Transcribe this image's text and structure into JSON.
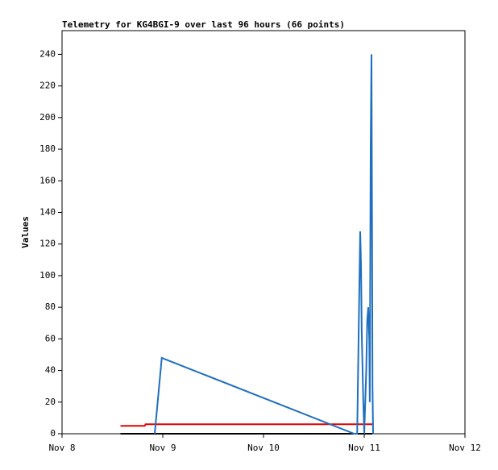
{
  "chart_data": {
    "type": "line",
    "title": "Telemetry for KG4BGI-9 over last 96 hours (66 points)",
    "ylabel": "Values",
    "xlim": [
      8,
      12
    ],
    "xticks": [
      {
        "value": 8,
        "label": "Nov 8"
      },
      {
        "value": 9,
        "label": "Nov 9"
      },
      {
        "value": 10,
        "label": "Nov 10"
      },
      {
        "value": 11,
        "label": "Nov 11"
      },
      {
        "value": 12,
        "label": "Nov 12"
      }
    ],
    "ylim": [
      0,
      255
    ],
    "yticks": [
      0,
      20,
      40,
      60,
      80,
      100,
      120,
      140,
      160,
      180,
      200,
      220,
      240
    ],
    "grid": false,
    "series": [
      {
        "name": "black",
        "color": "#000000",
        "x": [
          8.58,
          11.08
        ],
        "values": [
          0,
          0
        ]
      },
      {
        "name": "red",
        "color": "#e00000",
        "x": [
          8.58,
          8.82,
          8.83,
          11.08
        ],
        "values": [
          5,
          5,
          6,
          6
        ]
      },
      {
        "name": "blue",
        "color": "#1f6fc0",
        "x": [
          8.92,
          8.99,
          10.9,
          10.93,
          10.945,
          10.96,
          10.968,
          10.975,
          10.99,
          11.0,
          11.02,
          11.03,
          11.04,
          11.05,
          11.055,
          11.064,
          11.072,
          11.078,
          11.082,
          11.088
        ],
        "values": [
          0,
          48,
          0,
          0,
          65,
          128,
          107,
          65,
          22,
          0,
          40,
          72,
          80,
          60,
          20,
          180,
          240,
          121,
          30,
          0
        ]
      }
    ]
  }
}
